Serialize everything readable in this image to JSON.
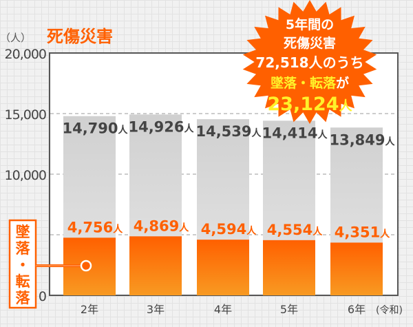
{
  "chart_data": {
    "type": "bar",
    "title": "死傷災害",
    "ylabel": "（人）",
    "ylim": [
      0,
      20000
    ],
    "yticks": [
      "0",
      "10,000",
      "15,000",
      "20,000"
    ],
    "ytick_values": [
      0,
      10000,
      15000,
      20000
    ],
    "grid": "dashed horizontal at 5,000 intervals",
    "categories": [
      "2年",
      "3年",
      "4年",
      "5年",
      "6年"
    ],
    "x_unit_note": "(令和)",
    "series": [
      {
        "name": "死傷災害",
        "values": [
          14790,
          14926,
          14539,
          14414,
          13849
        ],
        "labels": [
          "14,790",
          "14,926",
          "14,539",
          "14,414",
          "13,849"
        ],
        "color": "#d3d3d3"
      },
      {
        "name": "墜落・転落",
        "values": [
          4756,
          4869,
          4594,
          4554,
          4351
        ],
        "labels": [
          "4,756",
          "4,869",
          "4,594",
          "4,554",
          "4,351"
        ],
        "color": "#ff6600"
      }
    ],
    "value_unit": "人",
    "legend_label": [
      "墜",
      "落",
      "・",
      "転",
      "落"
    ],
    "callout": {
      "line1": "5年間の",
      "line2": "死傷災害",
      "line3": "72,518人のうち",
      "line4a": "墜落・転落",
      "line4b": "が",
      "line5a": "23,124",
      "line5b": "人",
      "color": "#ff6000",
      "highlight": "#fff22a"
    }
  }
}
